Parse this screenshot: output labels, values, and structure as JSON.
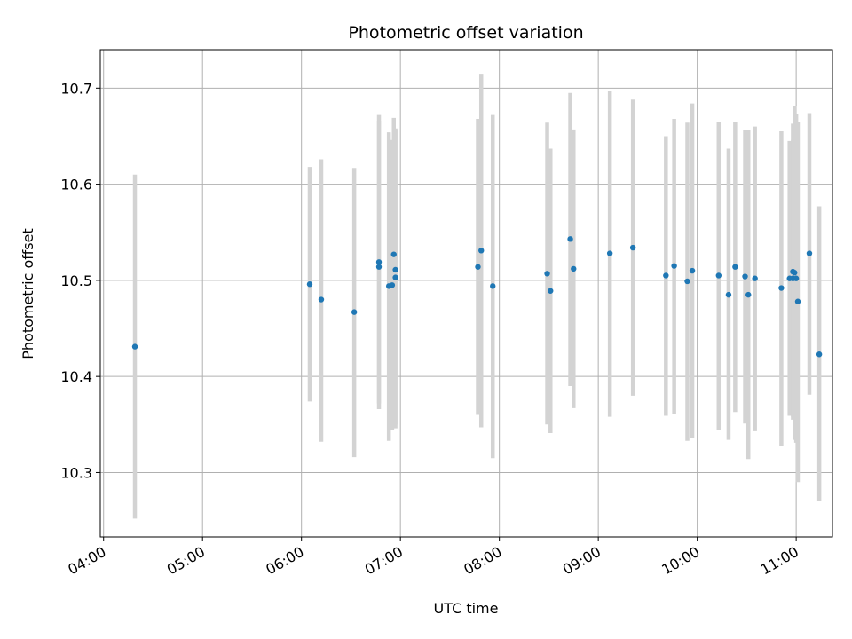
{
  "chart_data": {
    "type": "scatter",
    "title": "Photometric offset variation",
    "xlabel": "UTC time",
    "ylabel": "Photometric offset",
    "x_ticks": [
      "04:00",
      "05:00",
      "06:00",
      "07:00",
      "08:00",
      "09:00",
      "10:00",
      "11:00"
    ],
    "y_ticks": [
      10.3,
      10.4,
      10.5,
      10.6,
      10.7
    ],
    "xlim": [
      "03:58",
      "11:22"
    ],
    "ylim": [
      10.233,
      10.74
    ],
    "grid": true,
    "marker_color": "#1f77b4",
    "errorbar_color": "#d3d3d3",
    "points": [
      {
        "x": "04:19",
        "y": 10.431,
        "err_low": 10.252,
        "err_high": 10.61
      },
      {
        "x": "06:05",
        "y": 10.496,
        "err_low": 10.374,
        "err_high": 10.618
      },
      {
        "x": "06:12",
        "y": 10.48,
        "err_low": 10.332,
        "err_high": 10.626
      },
      {
        "x": "06:32",
        "y": 10.467,
        "err_low": 10.316,
        "err_high": 10.617
      },
      {
        "x": "06:47",
        "y": 10.519,
        "err_low": 10.366,
        "err_high": 10.672
      },
      {
        "x": "06:47",
        "y": 10.514,
        "err_low": 10.372,
        "err_high": 10.666
      },
      {
        "x": "06:53",
        "y": 10.494,
        "err_low": 10.333,
        "err_high": 10.654
      },
      {
        "x": "06:55",
        "y": 10.495,
        "err_low": 10.344,
        "err_high": 10.646
      },
      {
        "x": "06:56",
        "y": 10.527,
        "err_low": 10.385,
        "err_high": 10.669
      },
      {
        "x": "06:57",
        "y": 10.511,
        "err_low": 10.346,
        "err_high": 10.658
      },
      {
        "x": "06:57",
        "y": 10.503,
        "err_low": 10.35,
        "err_high": 10.656
      },
      {
        "x": "07:47",
        "y": 10.514,
        "err_low": 10.36,
        "err_high": 10.668
      },
      {
        "x": "07:49",
        "y": 10.531,
        "err_low": 10.347,
        "err_high": 10.715
      },
      {
        "x": "07:56",
        "y": 10.494,
        "err_low": 10.315,
        "err_high": 10.672
      },
      {
        "x": "08:29",
        "y": 10.507,
        "err_low": 10.35,
        "err_high": 10.664
      },
      {
        "x": "08:31",
        "y": 10.489,
        "err_low": 10.341,
        "err_high": 10.637
      },
      {
        "x": "08:43",
        "y": 10.543,
        "err_low": 10.39,
        "err_high": 10.695
      },
      {
        "x": "08:45",
        "y": 10.512,
        "err_low": 10.367,
        "err_high": 10.657
      },
      {
        "x": "09:07",
        "y": 10.528,
        "err_low": 10.358,
        "err_high": 10.697
      },
      {
        "x": "09:21",
        "y": 10.534,
        "err_low": 10.38,
        "err_high": 10.688
      },
      {
        "x": "09:41",
        "y": 10.505,
        "err_low": 10.359,
        "err_high": 10.65
      },
      {
        "x": "09:46",
        "y": 10.515,
        "err_low": 10.361,
        "err_high": 10.668
      },
      {
        "x": "09:54",
        "y": 10.499,
        "err_low": 10.333,
        "err_high": 10.664
      },
      {
        "x": "09:57",
        "y": 10.51,
        "err_low": 10.336,
        "err_high": 10.684
      },
      {
        "x": "10:13",
        "y": 10.505,
        "err_low": 10.344,
        "err_high": 10.665
      },
      {
        "x": "10:19",
        "y": 10.485,
        "err_low": 10.334,
        "err_high": 10.637
      },
      {
        "x": "10:23",
        "y": 10.514,
        "err_low": 10.363,
        "err_high": 10.665
      },
      {
        "x": "10:29",
        "y": 10.504,
        "err_low": 10.351,
        "err_high": 10.656
      },
      {
        "x": "10:31",
        "y": 10.485,
        "err_low": 10.314,
        "err_high": 10.656
      },
      {
        "x": "10:35",
        "y": 10.502,
        "err_low": 10.343,
        "err_high": 10.66
      },
      {
        "x": "10:51",
        "y": 10.492,
        "err_low": 10.328,
        "err_high": 10.655
      },
      {
        "x": "10:56",
        "y": 10.502,
        "err_low": 10.359,
        "err_high": 10.645
      },
      {
        "x": "10:58",
        "y": 10.509,
        "err_low": 10.355,
        "err_high": 10.663
      },
      {
        "x": "10:58",
        "y": 10.502,
        "err_low": 10.358,
        "err_high": 10.646
      },
      {
        "x": "10:59",
        "y": 10.508,
        "err_low": 10.334,
        "err_high": 10.681
      },
      {
        "x": "11:00",
        "y": 10.502,
        "err_low": 10.331,
        "err_high": 10.673
      },
      {
        "x": "11:01",
        "y": 10.478,
        "err_low": 10.29,
        "err_high": 10.665
      },
      {
        "x": "11:08",
        "y": 10.528,
        "err_low": 10.381,
        "err_high": 10.674
      },
      {
        "x": "11:14",
        "y": 10.423,
        "err_low": 10.27,
        "err_high": 10.577
      }
    ]
  }
}
